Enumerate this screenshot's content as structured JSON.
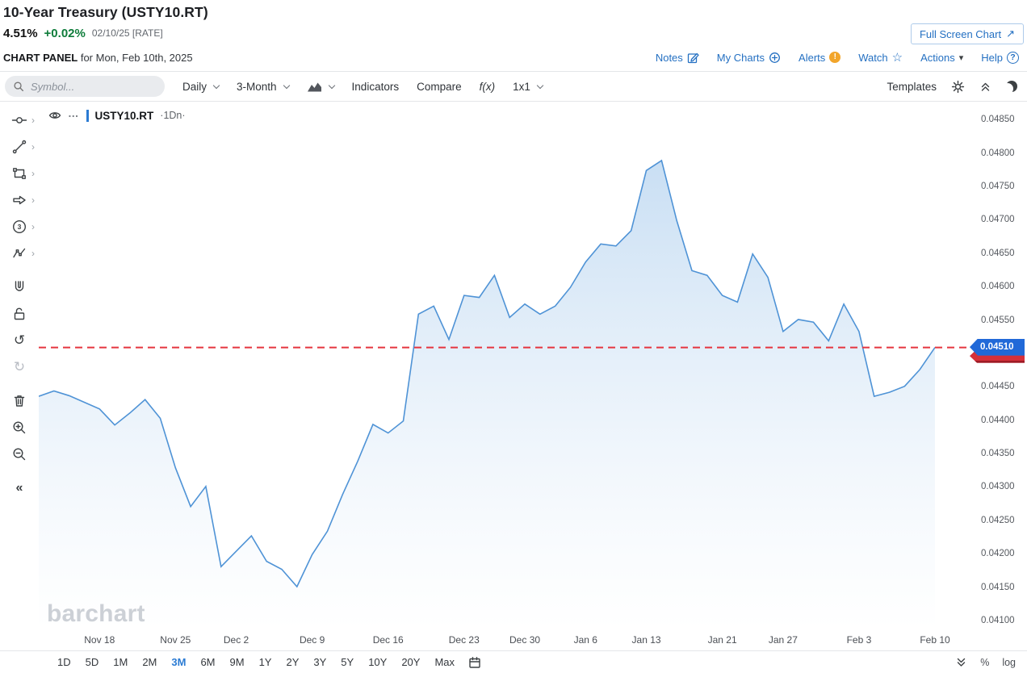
{
  "header": {
    "title": "10-Year Treasury (USTY10.RT)",
    "last_price": "4.51%",
    "change": "+0.02%",
    "quote_time": "02/10/25 [RATE]",
    "fullscreen_button": "Full Screen Chart",
    "fullscreen_arrow": "↗"
  },
  "panel_bar": {
    "title": "CHART PANEL",
    "subtitle": "for Mon, Feb 10th, 2025",
    "links": {
      "notes": "Notes",
      "my_charts": "My Charts",
      "alerts": "Alerts",
      "watch": "Watch",
      "actions": "Actions",
      "help": "Help"
    }
  },
  "toolbar": {
    "symbol_placeholder": "Symbol...",
    "frequency": "Daily",
    "range": "3-Month",
    "indicators": "Indicators",
    "compare": "Compare",
    "fx": "f(x)",
    "layout": "1x1",
    "templates": "Templates"
  },
  "legend": {
    "symbol": "USTY10.RT",
    "frequency": "·1Dn·"
  },
  "watermark": "barchart",
  "bottom_bar": {
    "ranges": [
      "1D",
      "5D",
      "1M",
      "2M",
      "3M",
      "6M",
      "9M",
      "1Y",
      "2Y",
      "3Y",
      "5Y",
      "10Y",
      "20Y",
      "Max"
    ],
    "active_range": "3M",
    "percent_label": "%",
    "log_label": "log"
  },
  "colors": {
    "link_blue": "#2470c2",
    "change_green": "#0e7c3a",
    "series_line": "#4f93d6",
    "area_fill_top": "#c6ddf3",
    "area_fill_bottom": "#ffffff",
    "alert_line_red": "#e5353f",
    "price_tag_blue": "#2169d8",
    "price_tag_red": "#d6303a",
    "active_range_blue": "#2b7bd3",
    "alert_icon_amber": "#f2a52a"
  },
  "chart_data": {
    "type": "area",
    "title": "10-Year Treasury (USTY10.RT) daily yield, 3-Month",
    "xlabel": "",
    "ylabel": "",
    "grid": false,
    "legend_position": "top-left",
    "ylim": [
      0.04088,
      0.04878
    ],
    "last_price": 0.0451,
    "last_price_label": "0.04510",
    "x": [
      "Nov 12",
      "Nov 13",
      "Nov 14",
      "Nov 15",
      "Nov 18",
      "Nov 19",
      "Nov 20",
      "Nov 21",
      "Nov 22",
      "Nov 25",
      "Nov 26",
      "Nov 27",
      "Nov 29",
      "Dec 2",
      "Dec 3",
      "Dec 4",
      "Dec 5",
      "Dec 6",
      "Dec 9",
      "Dec 10",
      "Dec 11",
      "Dec 12",
      "Dec 13",
      "Dec 16",
      "Dec 17",
      "Dec 18",
      "Dec 19",
      "Dec 20",
      "Dec 23",
      "Dec 24",
      "Dec 26",
      "Dec 27",
      "Dec 30",
      "Dec 31",
      "Jan 2",
      "Jan 3",
      "Jan 6",
      "Jan 7",
      "Jan 8",
      "Jan 10",
      "Jan 13",
      "Jan 14",
      "Jan 15",
      "Jan 16",
      "Jan 17",
      "Jan 21",
      "Jan 22",
      "Jan 23",
      "Jan 24",
      "Jan 27",
      "Jan 28",
      "Jan 29",
      "Jan 30",
      "Jan 31",
      "Feb 3",
      "Feb 4",
      "Feb 5",
      "Feb 6",
      "Feb 7",
      "Feb 10"
    ],
    "values": [
      0.04437,
      0.04445,
      0.04438,
      0.04428,
      0.04418,
      0.04394,
      0.04412,
      0.04432,
      0.04404,
      0.0433,
      0.04272,
      0.04302,
      0.04182,
      0.04205,
      0.04228,
      0.0419,
      0.04178,
      0.04152,
      0.042,
      0.04235,
      0.0429,
      0.0434,
      0.04395,
      0.04382,
      0.044,
      0.0456,
      0.04572,
      0.04522,
      0.04588,
      0.04585,
      0.04618,
      0.04555,
      0.04575,
      0.0456,
      0.04572,
      0.046,
      0.04638,
      0.04665,
      0.04662,
      0.04685,
      0.04775,
      0.0479,
      0.047,
      0.04625,
      0.04618,
      0.04588,
      0.04578,
      0.0465,
      0.04615,
      0.04534,
      0.04552,
      0.04548,
      0.0452,
      0.04575,
      0.04534,
      0.04437,
      0.04443,
      0.04452,
      0.04477,
      0.0451
    ],
    "x_ticks": [
      {
        "label": "Nov 18",
        "i": 4
      },
      {
        "label": "Nov 25",
        "i": 9
      },
      {
        "label": "Dec 2",
        "i": 13
      },
      {
        "label": "Dec 9",
        "i": 18
      },
      {
        "label": "Dec 16",
        "i": 23
      },
      {
        "label": "Dec 23",
        "i": 28
      },
      {
        "label": "Dec 30",
        "i": 32
      },
      {
        "label": "Jan 6",
        "i": 36
      },
      {
        "label": "Jan 13",
        "i": 40
      },
      {
        "label": "Jan 21",
        "i": 45
      },
      {
        "label": "Jan 27",
        "i": 49
      },
      {
        "label": "Feb 3",
        "i": 54
      },
      {
        "label": "Feb 10",
        "i": 59
      }
    ],
    "y_ticks": [
      0.0485,
      0.048,
      0.0475,
      0.047,
      0.0465,
      0.046,
      0.0455,
      0.045,
      0.0445,
      0.044,
      0.0435,
      0.043,
      0.0425,
      0.042,
      0.0415,
      0.041
    ]
  }
}
